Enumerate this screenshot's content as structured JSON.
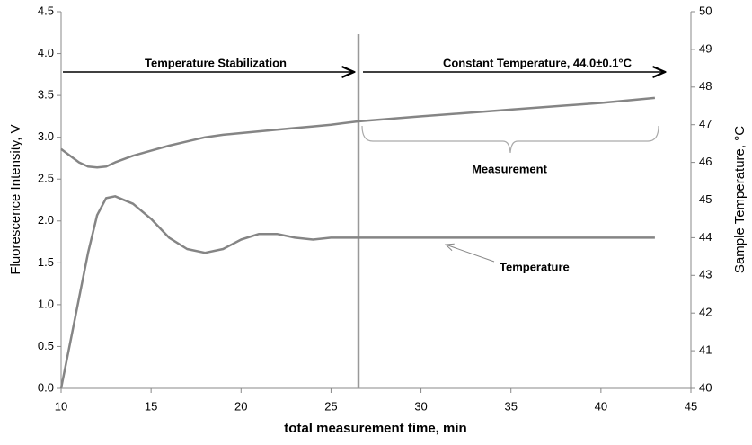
{
  "chart_data": {
    "type": "line",
    "x_label": "total measurement time, min",
    "y_label": "Fluorescence Intensity, V",
    "y2_label": "Sample Temperature, °C",
    "annotations": [
      "Temperature Stabilization",
      "Constant Temperature, 44.0±0.1°C",
      "Measurement",
      "Temperature"
    ],
    "x": [
      10,
      10.5,
      11,
      11.5,
      12,
      12.5,
      13,
      14,
      15,
      16,
      17,
      18,
      19,
      20,
      21,
      22,
      23,
      24,
      25,
      26.5,
      30,
      35,
      40,
      43
    ],
    "series": [
      {
        "color": "#858585",
        "values": [
          2.86,
          2.78,
          2.7,
          2.65,
          2.64,
          2.65,
          2.7,
          2.78,
          2.84,
          2.9,
          2.95,
          3.0,
          3.03,
          3.05,
          3.07,
          3.09,
          3.11,
          3.13,
          3.15,
          3.19,
          3.25,
          3.33,
          3.41,
          3.47
        ]
      },
      {
        "color": "#858585",
        "axis": "y2",
        "values": [
          40.0,
          41.2,
          42.4,
          43.6,
          44.6,
          45.05,
          45.1,
          44.9,
          44.5,
          44.0,
          43.7,
          43.6,
          43.7,
          43.95,
          44.1,
          44.1,
          44.0,
          43.95,
          44.0,
          44.0,
          44.0,
          44.0,
          44.0,
          44.0
        ]
      }
    ],
    "xlim": [
      10,
      45
    ],
    "xticks": [
      10,
      15,
      20,
      25,
      30,
      35,
      40,
      45
    ],
    "ylim": [
      0,
      4.5
    ],
    "yticks": [
      {
        "value": 0,
        "label": "0.0"
      },
      {
        "value": 0.5,
        "label": "0.5"
      },
      {
        "value": 1,
        "label": "1.0"
      },
      {
        "value": 1.5,
        "label": "1.5"
      },
      {
        "value": 2,
        "label": "2.0"
      },
      {
        "value": 2.5,
        "label": "2.5"
      },
      {
        "value": 3,
        "label": "3.0"
      },
      {
        "value": 3.5,
        "label": "3.5"
      },
      {
        "value": 4,
        "label": "4.0"
      },
      {
        "value": 4.5,
        "label": "4.5"
      }
    ],
    "y2lim": [
      40,
      50
    ],
    "y2ticks": [
      40,
      41,
      42,
      43,
      44,
      45,
      46,
      47,
      48,
      49,
      50
    ]
  }
}
